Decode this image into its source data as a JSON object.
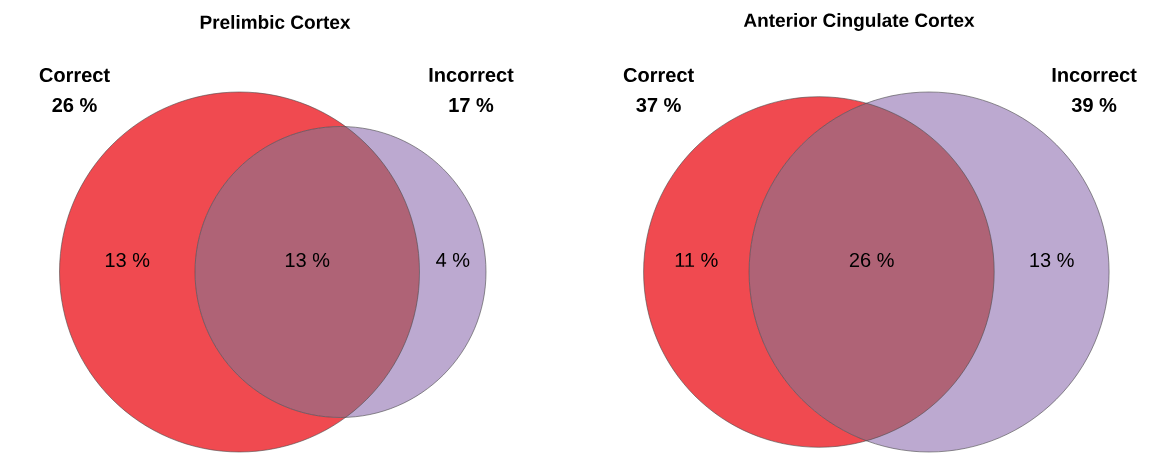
{
  "chart_data": [
    {
      "type": "other",
      "title": "Prelimbic Cortex",
      "categories": [
        "Correct",
        "Incorrect"
      ],
      "values": [
        26,
        17
      ],
      "value_labels": [
        "26 %",
        "17 %"
      ],
      "colors": [
        "#f04a50",
        "#bca9d0"
      ],
      "annotations": [
        "13 %",
        "13 %",
        "4 %"
      ]
    },
    {
      "type": "other",
      "title": "Anterior Cingulate Cortex",
      "categories": [
        "Correct",
        "Incorrect"
      ],
      "values": [
        37,
        39
      ],
      "value_labels": [
        "37 %",
        "39 %"
      ],
      "colors": [
        "#f04a50",
        "#bca9d0"
      ],
      "annotations": [
        "11 %",
        "26 %",
        "13 %"
      ]
    }
  ]
}
